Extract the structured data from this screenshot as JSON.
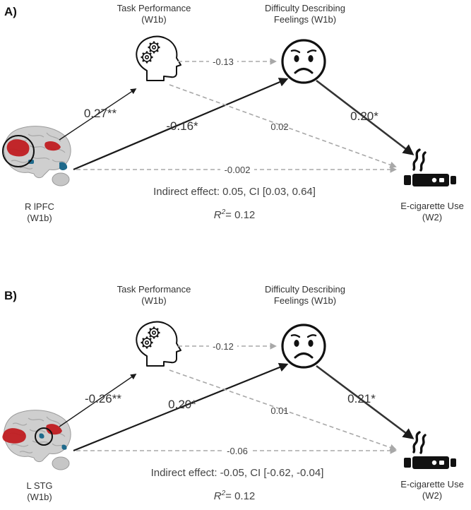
{
  "panels": [
    {
      "label": "A)",
      "mediator1": {
        "title": "Task Performance",
        "wave": "(W1b)"
      },
      "mediator2": {
        "title_line1": "Difficulty Describing",
        "title_line2": "Feelings (W1b)"
      },
      "predictor": {
        "title": "R lPFC",
        "wave": "(W1b)"
      },
      "outcome": {
        "title": "E-cigarette Use",
        "wave": "(W2)"
      },
      "paths": {
        "m1_to_m2": "-0.13",
        "x_to_m1": "0.27**",
        "x_to_m2": "-0.16*",
        "m1_to_y": "0.02",
        "m2_to_y": "0.20*",
        "x_to_y": "-0.002"
      },
      "indirect": "Indirect effect: 0.05, CI [0.03, 0.64]",
      "r2_symbol": "R",
      "r2_exp": "2",
      "r2_value": "= 0.12"
    },
    {
      "label": "B)",
      "mediator1": {
        "title": "Task Performance",
        "wave": "(W1b)"
      },
      "mediator2": {
        "title_line1": "Difficulty Describing",
        "title_line2": "Feelings (W1b)"
      },
      "predictor": {
        "title": "L STG",
        "wave": "(W1b)"
      },
      "outcome": {
        "title": "E-cigarette Use",
        "wave": "(W2)"
      },
      "paths": {
        "m1_to_m2": "-0.12",
        "x_to_m1": "-0.26**",
        "x_to_m2": "0.20*",
        "m1_to_y": "0.01",
        "m2_to_y": "0.21*",
        "x_to_y": "-0.06"
      },
      "indirect": "Indirect effect: -0.05, CI [-0.62, -0.04]",
      "r2_symbol": "R",
      "r2_exp": "2",
      "r2_value": "= 0.12"
    }
  ],
  "colors": {
    "solid_arrow": "#1a1a1a",
    "dashed_arrow": "#a8a8a8",
    "brain": "#cfcfcf",
    "brain_red": "#c0181c",
    "brain_blue": "#1f6a8c"
  }
}
